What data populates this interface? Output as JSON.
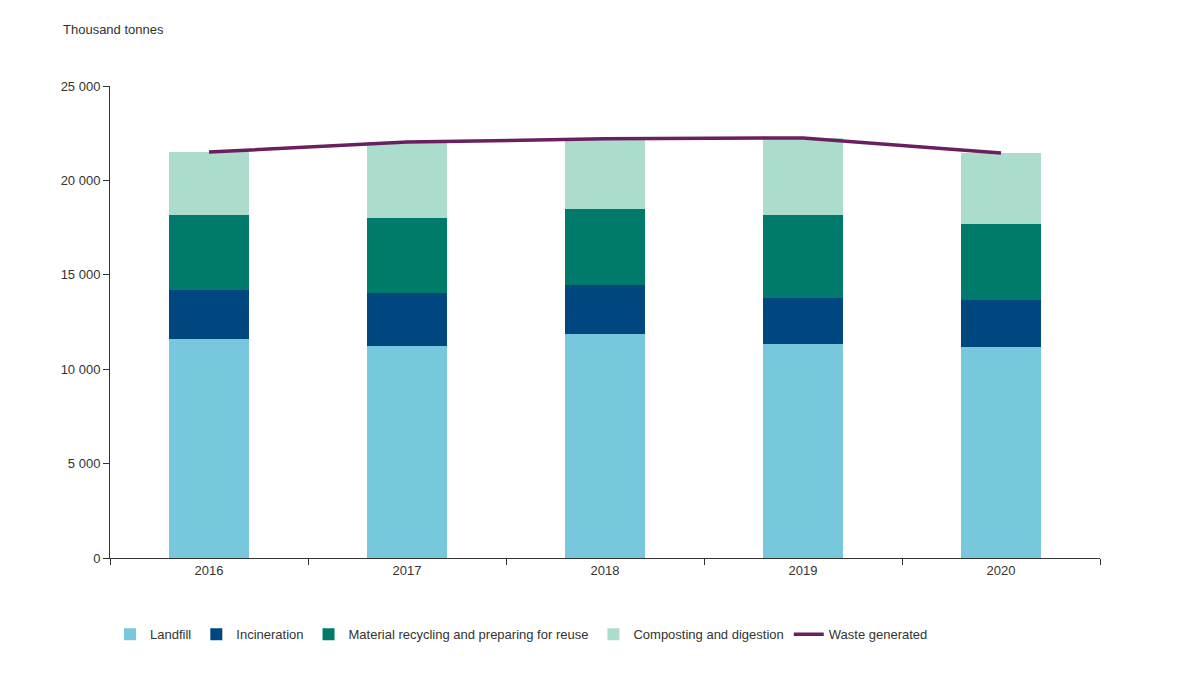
{
  "chart_data": {
    "type": "bar",
    "ylabel": "Thousand tonnes",
    "categories": [
      "2016",
      "2017",
      "2018",
      "2019",
      "2020"
    ],
    "series": [
      {
        "name": "Landfill",
        "type": "bar",
        "color": "#77c8dc",
        "values": [
          11600,
          11230,
          11860,
          11330,
          11180
        ]
      },
      {
        "name": "Incineration",
        "type": "bar",
        "color": "#00467f",
        "values": [
          2600,
          2810,
          2600,
          2440,
          2490
        ]
      },
      {
        "name": "Material recycling and preparing for reuse",
        "type": "bar",
        "color": "#007a6a",
        "values": [
          3970,
          3970,
          4030,
          4400,
          4020
        ]
      },
      {
        "name": "Composting and digestion",
        "type": "bar",
        "color": "#acdccc",
        "values": [
          3330,
          4020,
          3700,
          4080,
          3760
        ]
      },
      {
        "name": "Waste generated",
        "type": "line",
        "color": "#6a1f61",
        "values": [
          21500,
          22030,
          22200,
          22250,
          21450
        ]
      }
    ],
    "stacked": true,
    "ylim": [
      0,
      25000
    ],
    "yticks": [
      0,
      {
        "value": 5000,
        "label": "5 000"
      },
      {
        "value": 10000,
        "label": "10 000"
      },
      {
        "value": 15000,
        "label": "15 000"
      },
      {
        "value": 20000,
        "label": "20 000"
      },
      {
        "value": 25000,
        "label": "25 000"
      }
    ],
    "grid": false,
    "legend": "bottom"
  }
}
